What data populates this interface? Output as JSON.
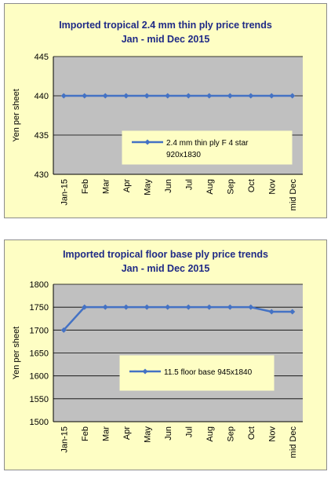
{
  "chart_data": [
    {
      "type": "line",
      "title": "Imported tropical 2.4 mm thin ply price trends",
      "subtitle": "Jan - mid Dec 2015",
      "ylabel": "Yen per sheet",
      "xlabel": "",
      "categories": [
        "Jan-15",
        "Feb",
        "Mar",
        "Apr",
        "May",
        "Jun",
        "Jul",
        "Aug",
        "Sep",
        "Oct",
        "Nov",
        "mid Dec"
      ],
      "ylim": [
        430,
        445
      ],
      "yticks": [
        430,
        435,
        440,
        445
      ],
      "grid": true,
      "legend_position": "lower-right",
      "series": [
        {
          "name": "2.4 mm thin ply F 4 star 920x1830",
          "values": [
            440,
            440,
            440,
            440,
            440,
            440,
            440,
            440,
            440,
            440,
            440,
            440
          ]
        }
      ],
      "colors": {
        "panel": "#fefec4",
        "plot": "#c0c0c0",
        "line": "#4472c4",
        "title": "#1f2a86"
      }
    },
    {
      "type": "line",
      "title": "Imported tropical floor base ply price trends",
      "subtitle": "Jan - mid Dec 2015",
      "ylabel": "Yen per sheet",
      "xlabel": "",
      "categories": [
        "Jan-15",
        "Feb",
        "Mar",
        "Apr",
        "May",
        "Jun",
        "Jul",
        "Aug",
        "Sep",
        "Oct",
        "Nov",
        "mid Dec"
      ],
      "ylim": [
        1500,
        1800
      ],
      "yticks": [
        1500,
        1550,
        1600,
        1650,
        1700,
        1750,
        1800
      ],
      "grid": true,
      "legend_position": "lower-right",
      "series": [
        {
          "name": "11.5 floor base 945x1840",
          "values": [
            1700,
            1750,
            1750,
            1750,
            1750,
            1750,
            1750,
            1750,
            1750,
            1750,
            1740,
            1740
          ]
        }
      ],
      "colors": {
        "panel": "#fefec4",
        "plot": "#c0c0c0",
        "line": "#4472c4",
        "title": "#1f2a86"
      }
    }
  ]
}
